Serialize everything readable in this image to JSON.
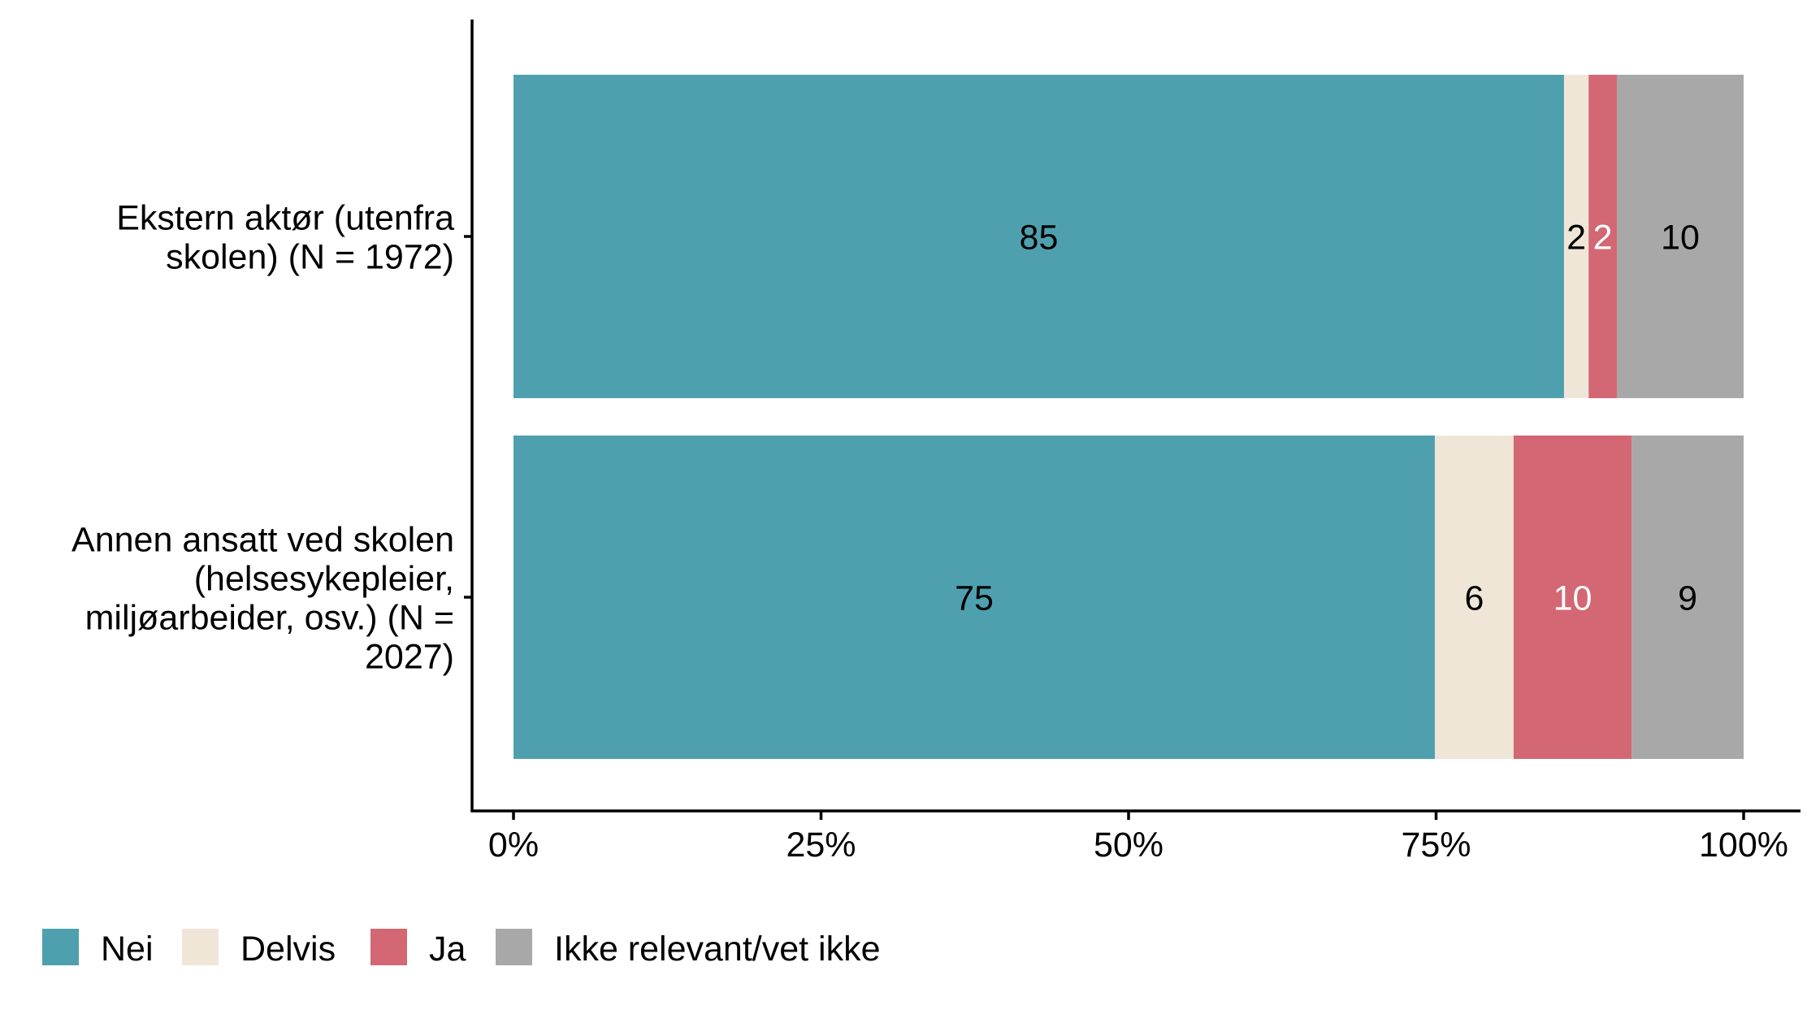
{
  "chart_data": {
    "type": "bar",
    "orientation": "horizontal",
    "stacked": true,
    "categories": [
      [
        "Ekstern aktør (utenfra",
        "skolen) (N = 1972)"
      ],
      [
        "Annen ansatt ved skolen",
        "(helsesykepleier,",
        "miljøarbeider, osv.) (N =",
        "2027)"
      ]
    ],
    "series": [
      {
        "name": "Nei",
        "color": "#4FA0AF",
        "label_color": "#000000",
        "values": [
          85.4,
          74.9
        ],
        "labels": [
          "85",
          "75"
        ]
      },
      {
        "name": "Delvis",
        "color": "#F0E6D8",
        "label_color": "#000000",
        "values": [
          2.0,
          6.4
        ],
        "labels": [
          "2",
          "6"
        ]
      },
      {
        "name": "Ja",
        "color": "#D36774",
        "label_color": "#ffffff",
        "values": [
          2.3,
          9.6
        ],
        "labels": [
          "2",
          "10"
        ]
      },
      {
        "name": "Ikke relevant/vet ikke",
        "color": "#A8A8A8",
        "label_color": "#000000",
        "values": [
          10.3,
          9.1
        ],
        "labels": [
          "10",
          "9"
        ]
      }
    ],
    "xticks": [
      "0%",
      "25%",
      "50%",
      "75%",
      "100%"
    ],
    "xlim": [
      0,
      100
    ],
    "xlabel": "",
    "ylabel": "",
    "grid": false,
    "legend_position": "bottom-left"
  }
}
